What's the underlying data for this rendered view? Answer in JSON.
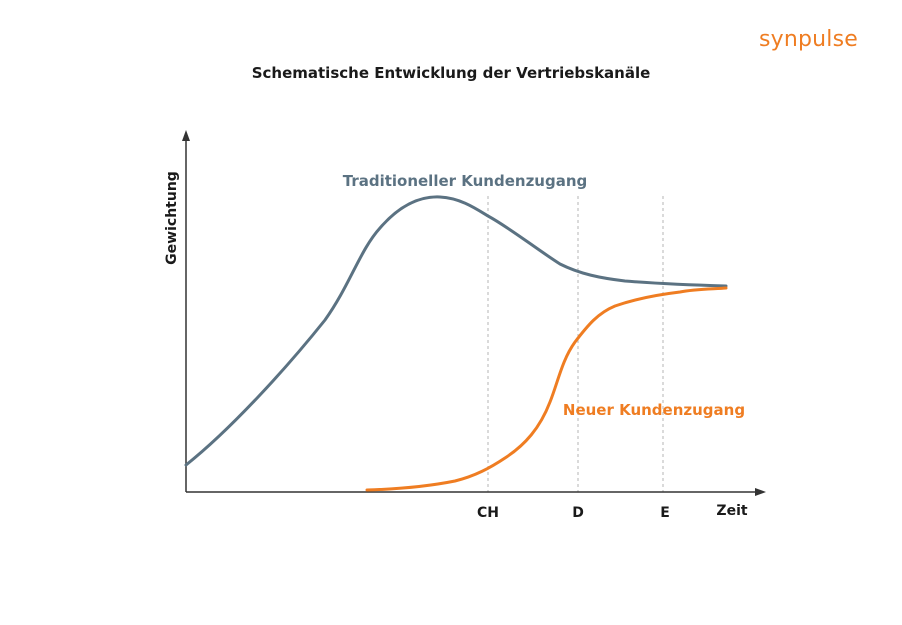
{
  "brand": {
    "name": "synpulse"
  },
  "chart_data": {
    "type": "line",
    "title": "Schematische Entwicklung der Vertriebskanäle",
    "ylabel": "Gewichtung",
    "xlabel": "Zeit",
    "markers": [
      "CH",
      "D",
      "E"
    ],
    "series": [
      {
        "name": "Traditioneller Kundenzugang",
        "color": "#5b7282"
      },
      {
        "name": "Neuer Kundenzugang",
        "color": "#ef7d22"
      }
    ]
  }
}
